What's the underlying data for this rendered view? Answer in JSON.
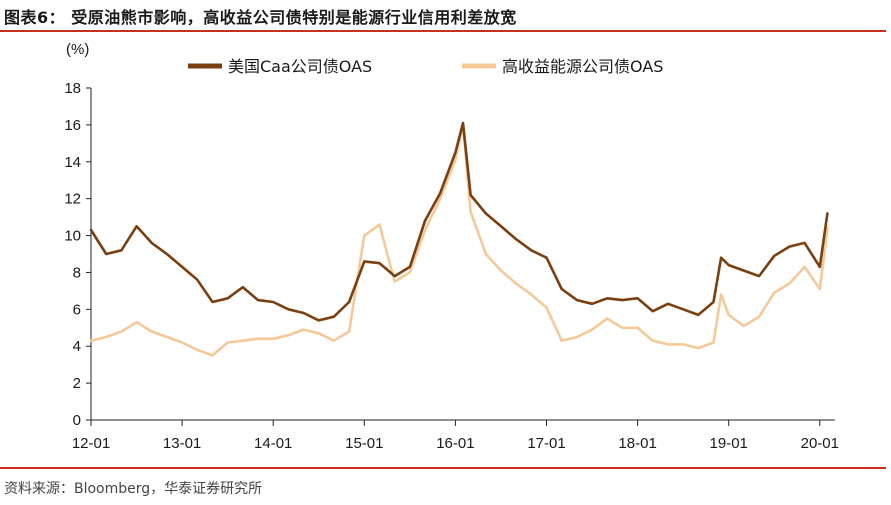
{
  "figure": {
    "title": "图表6： 受原油熊市影响，高收益公司债特别是能源行业信用利差放宽",
    "source": "资料来源：Bloomberg，华泰证券研究所"
  },
  "colors": {
    "accent_rule": "#c8301e",
    "series_caa": "#7a3f10",
    "series_energy": "#f5c898"
  },
  "chart_data": {
    "type": "line",
    "ylabel": "(%)",
    "ylim": [
      0,
      18
    ],
    "yticks": [
      "0",
      "2",
      "4",
      "6",
      "8",
      "10",
      "12",
      "14",
      "16",
      "18"
    ],
    "xlim": [
      "2012-01",
      "2020-03"
    ],
    "xticks": [
      "12-01",
      "13-01",
      "14-01",
      "15-01",
      "16-01",
      "17-01",
      "18-01",
      "19-01",
      "20-01"
    ],
    "legend_position": "top",
    "grid": false,
    "series": [
      {
        "name": "美国Caa公司债OAS",
        "color": "#7a3f10",
        "x": [
          "2012-01",
          "2012-03",
          "2012-05",
          "2012-07",
          "2012-09",
          "2012-11",
          "2013-01",
          "2013-03",
          "2013-05",
          "2013-07",
          "2013-09",
          "2013-11",
          "2014-01",
          "2014-03",
          "2014-05",
          "2014-07",
          "2014-09",
          "2014-11",
          "2015-01",
          "2015-03",
          "2015-05",
          "2015-07",
          "2015-09",
          "2015-11",
          "2016-01",
          "2016-02",
          "2016-03",
          "2016-05",
          "2016-07",
          "2016-09",
          "2016-11",
          "2017-01",
          "2017-03",
          "2017-05",
          "2017-07",
          "2017-09",
          "2017-11",
          "2018-01",
          "2018-03",
          "2018-05",
          "2018-07",
          "2018-09",
          "2018-11",
          "2018-12",
          "2019-01",
          "2019-03",
          "2019-05",
          "2019-07",
          "2019-09",
          "2019-11",
          "2020-01",
          "2020-02"
        ],
        "values": [
          10.3,
          9.0,
          9.2,
          10.5,
          9.6,
          9.0,
          8.3,
          7.6,
          6.4,
          6.6,
          7.2,
          6.5,
          6.4,
          6.0,
          5.8,
          5.4,
          5.6,
          6.4,
          8.6,
          8.5,
          7.8,
          8.3,
          10.8,
          12.3,
          14.5,
          16.1,
          12.2,
          11.2,
          10.5,
          9.8,
          9.2,
          8.8,
          7.1,
          6.5,
          6.3,
          6.6,
          6.5,
          6.6,
          5.9,
          6.3,
          6.0,
          5.7,
          6.4,
          8.8,
          8.4,
          8.1,
          7.8,
          8.9,
          9.4,
          9.6,
          8.3,
          11.2
        ]
      },
      {
        "name": "高收益能源公司债OAS",
        "color": "#f5c898",
        "x": [
          "2012-01",
          "2012-03",
          "2012-05",
          "2012-07",
          "2012-09",
          "2012-11",
          "2013-01",
          "2013-03",
          "2013-05",
          "2013-07",
          "2013-09",
          "2013-11",
          "2014-01",
          "2014-03",
          "2014-05",
          "2014-07",
          "2014-09",
          "2014-11",
          "2015-01",
          "2015-03",
          "2015-05",
          "2015-07",
          "2015-09",
          "2015-11",
          "2016-01",
          "2016-02",
          "2016-03",
          "2016-05",
          "2016-07",
          "2016-09",
          "2016-11",
          "2017-01",
          "2017-03",
          "2017-05",
          "2017-07",
          "2017-09",
          "2017-11",
          "2018-01",
          "2018-03",
          "2018-05",
          "2018-07",
          "2018-09",
          "2018-11",
          "2018-12",
          "2019-01",
          "2019-03",
          "2019-05",
          "2019-07",
          "2019-09",
          "2019-11",
          "2020-01",
          "2020-02"
        ],
        "values": [
          4.3,
          4.5,
          4.8,
          5.3,
          4.8,
          4.5,
          4.2,
          3.8,
          3.5,
          4.2,
          4.3,
          4.4,
          4.4,
          4.6,
          4.9,
          4.7,
          4.3,
          4.8,
          10.0,
          10.6,
          7.5,
          8.0,
          10.3,
          12.0,
          14.1,
          16.0,
          11.3,
          9.0,
          8.1,
          7.4,
          6.8,
          6.1,
          4.3,
          4.5,
          4.9,
          5.5,
          5.0,
          5.0,
          4.3,
          4.1,
          4.1,
          3.9,
          4.2,
          6.8,
          5.7,
          5.1,
          5.6,
          6.9,
          7.4,
          8.3,
          7.1,
          10.4
        ]
      }
    ]
  }
}
